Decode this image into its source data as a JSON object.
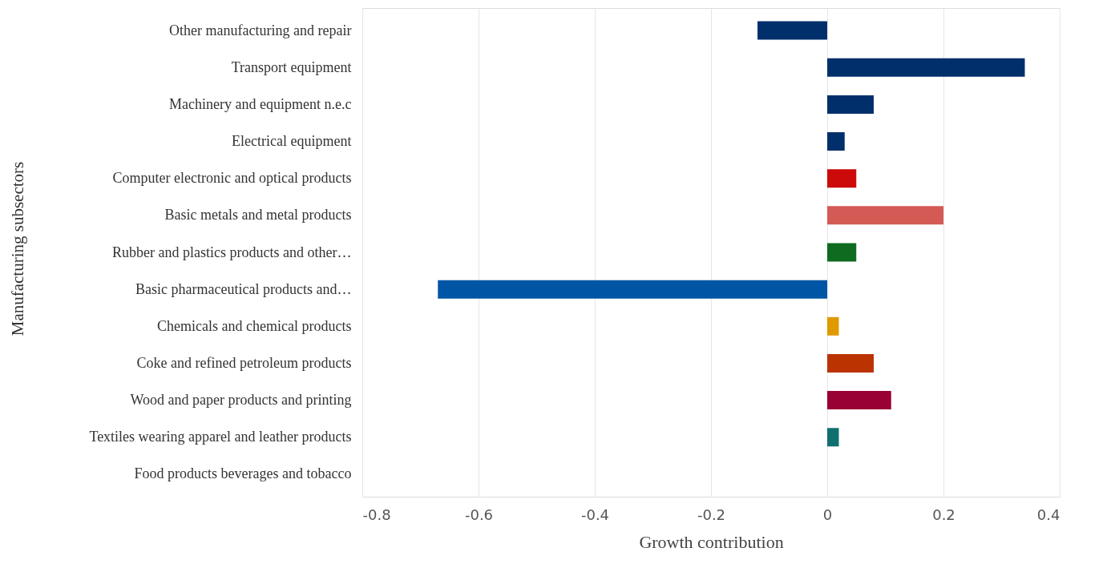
{
  "chart_data": {
    "type": "bar",
    "orientation": "horizontal",
    "xlabel": "Growth contribution",
    "ylabel": "Manufacturing subsectors",
    "categories": [
      "Other manufacturing and repair",
      "Transport equipment",
      "Machinery and equipment n.e.c",
      "Electrical equipment",
      "Computer electronic and optical products",
      "Basic metals and metal products",
      "Rubber and plastics products and other…",
      "Basic pharmaceutical products and…",
      "Chemicals and chemical products",
      "Coke and refined petroleum products",
      "Wood and paper products and printing",
      "Textiles wearing apparel and leather products",
      "Food products beverages and tobacco"
    ],
    "values": [
      -0.12,
      0.34,
      0.08,
      0.03,
      0.05,
      0.2,
      0.05,
      -0.67,
      0.02,
      0.08,
      0.11,
      0.02,
      0
    ],
    "colors": [
      "#002f6c",
      "#002f6c",
      "#002f6c",
      "#002f6c",
      "#cc0a0a",
      "#d45a55",
      "#0e6b1f",
      "#0055a5",
      "#e09a00",
      "#bb3300",
      "#990033",
      "#107070",
      "#107070"
    ],
    "xlim": [
      -0.8,
      0.4
    ],
    "xticks": [
      -0.8,
      -0.6,
      -0.4,
      -0.2,
      0,
      0.2,
      0.4
    ],
    "grid": "x"
  }
}
